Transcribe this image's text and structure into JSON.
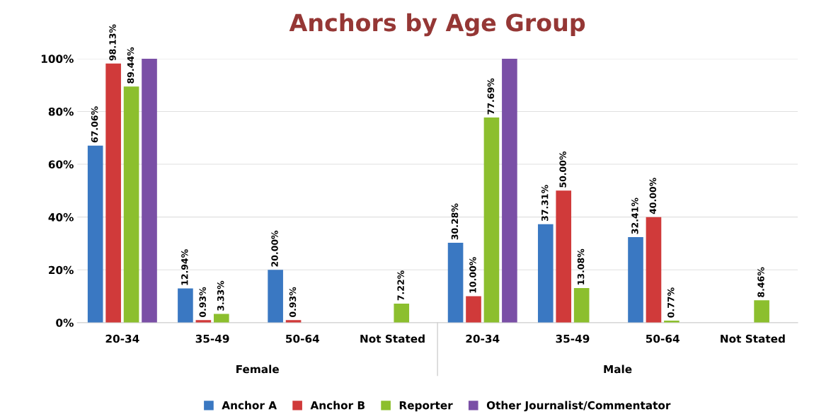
{
  "chart_data": {
    "type": "bar",
    "title": "Anchors by Age Group",
    "categories": [
      "20-34",
      "35-49",
      "50-64",
      "Not Stated",
      "20-34",
      "35-49",
      "50-64",
      "Not Stated"
    ],
    "annotations": [
      "Female",
      "Male"
    ],
    "series": [
      {
        "name": "Anchor A",
        "color": "#3a78c2",
        "values": [
          67.06,
          12.94,
          20.0,
          null,
          30.28,
          37.31,
          32.41,
          null
        ],
        "value_labels": [
          "67.06%",
          "12.94%",
          "20.00%",
          null,
          "30.28%",
          "37.31%",
          "32.41%",
          null
        ]
      },
      {
        "name": "Anchor B",
        "color": "#d03a3a",
        "values": [
          98.13,
          0.93,
          0.93,
          null,
          10.0,
          50.0,
          40.0,
          null
        ],
        "value_labels": [
          "98.13%",
          "0.93%",
          "0.93%",
          null,
          "10.00%",
          "50.00%",
          "40.00%",
          null
        ]
      },
      {
        "name": "Reporter",
        "color": "#8cbf2e",
        "values": [
          89.44,
          3.33,
          null,
          7.22,
          77.69,
          13.08,
          0.77,
          8.46
        ],
        "value_labels": [
          "89.44%",
          "3.33%",
          null,
          "7.22%",
          "77.69%",
          "13.08%",
          "0.77%",
          "8.46%"
        ]
      },
      {
        "name": "Other Journalist/Commentator",
        "color": "#7a4fa6",
        "values": [
          100,
          null,
          null,
          null,
          100,
          null,
          null,
          null
        ]
      }
    ],
    "ylim": [
      0,
      100
    ],
    "yticks": [
      {
        "value": 0,
        "label": "0%"
      },
      {
        "value": 20,
        "label": "20%"
      },
      {
        "value": 40,
        "label": "40%"
      },
      {
        "value": 60,
        "label": "60%"
      },
      {
        "value": 80,
        "label": "80%"
      },
      {
        "value": 100,
        "label": "100%"
      }
    ],
    "grid": "y",
    "legend": "bottom"
  }
}
